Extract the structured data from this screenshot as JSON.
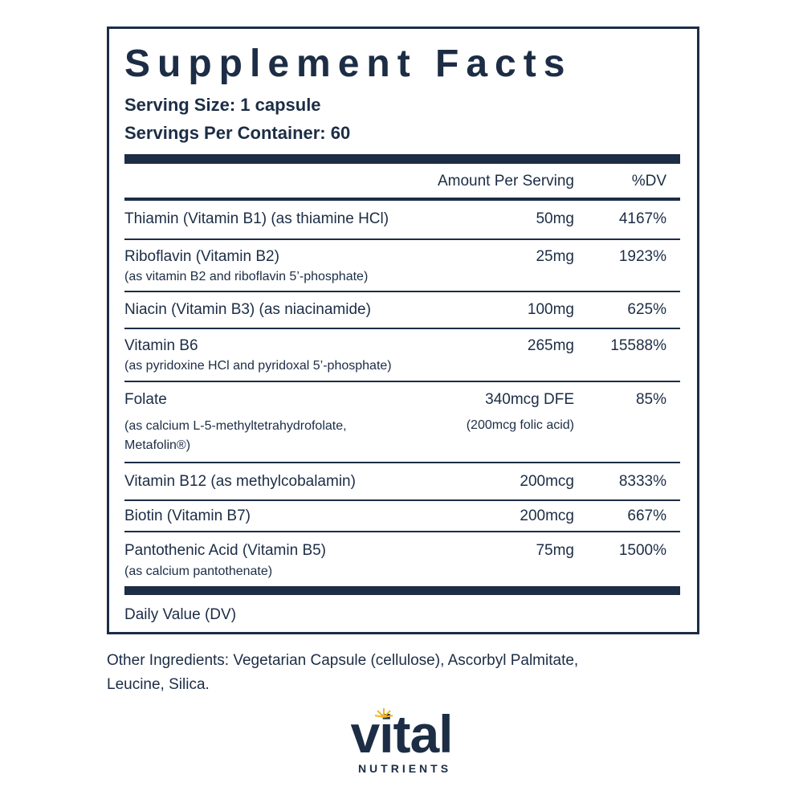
{
  "header": {
    "title": "Supplement Facts",
    "serving_size": "Serving Size: 1 capsule",
    "servings_per_container": "Servings Per Container: 60"
  },
  "table": {
    "columns": [
      "Amount Per Serving",
      "%DV"
    ],
    "rows": [
      {
        "name": "Thiamin (Vitamin B1) (as thiamine HCl)",
        "amount": "50mg",
        "dv": "4167%"
      },
      {
        "name": "Riboflavin (Vitamin B2)",
        "detail": [
          "(as vitamin B2 and riboflavin 5’-phosphate)"
        ],
        "amount": "25mg",
        "dv": "1923%"
      },
      {
        "name": "Niacin (Vitamin B3) (as niacinamide)",
        "amount": "100mg",
        "dv": "625%"
      },
      {
        "name": "Vitamin B6",
        "detail": [
          "(as pyridoxine HCl and pyridoxal 5’-phosphate)"
        ],
        "amount": "265mg",
        "dv": "15588%"
      },
      {
        "name": "Folate",
        "detail": [
          "(as calcium L-5-methyltetrahydrofolate,",
          "Metafolin®)"
        ],
        "amount": "340mcg DFE",
        "amount_detail": "(200mcg folic acid)",
        "dv": "85%"
      },
      {
        "name": "Vitamin B12 (as methylcobalamin)",
        "amount": "200mcg",
        "dv": "8333%"
      },
      {
        "name": "Biotin (Vitamin B7)",
        "amount": "200mcg",
        "dv": "667%"
      },
      {
        "name": "Pantothenic Acid (Vitamin B5)",
        "detail": [
          "(as calcium pantothenate)"
        ],
        "amount": "75mg",
        "dv": "1500%"
      }
    ]
  },
  "footnote": "Daily Value (DV)",
  "other_ingredients": "Other Ingredients: Vegetarian Capsule (cellulose), Ascorbyl Palmitate, Leucine, Silica.",
  "logo": {
    "name": "vital",
    "tagline": "NUTRIENTS"
  }
}
